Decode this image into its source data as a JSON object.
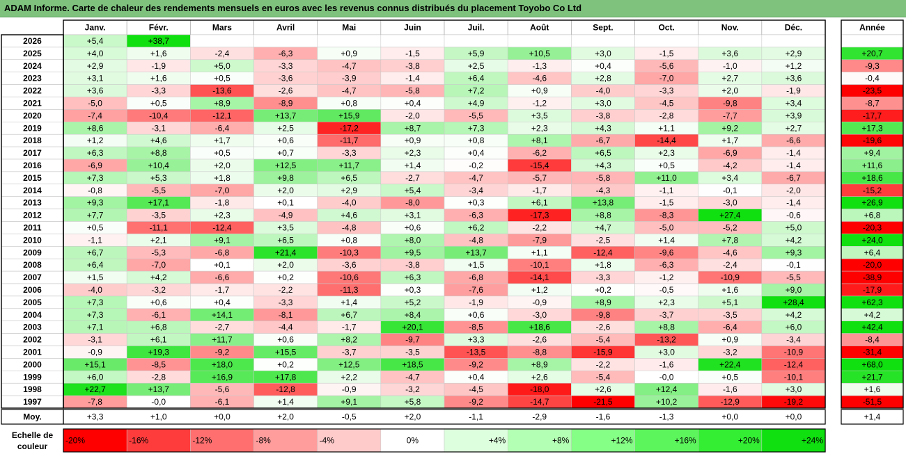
{
  "title": "ADAM Informe. Carte de chaleur des rendements mensuels en euros avec les revenus connus distribués du placement Toyobo Co Ltd",
  "chart_data": {
    "type": "heatmap",
    "columns": [
      "Janv.",
      "Févr.",
      "Mars",
      "Avril",
      "Mai",
      "Juin",
      "Juil.",
      "Août",
      "Sept.",
      "Oct.",
      "Nov.",
      "Déc."
    ],
    "year_header": "Année",
    "rows": [
      {
        "year": "2026",
        "values": [
          "+5,4",
          "+38,7",
          null,
          null,
          null,
          null,
          null,
          null,
          null,
          null,
          null,
          null
        ],
        "annual": null
      },
      {
        "year": "2025",
        "values": [
          "+4,0",
          "+1,6",
          "-2,4",
          "-6,3",
          "+0,9",
          "-1,5",
          "+5,9",
          "+10,5",
          "+3,0",
          "-1,5",
          "+3,6",
          "+2,9"
        ],
        "annual": "+20,7"
      },
      {
        "year": "2024",
        "values": [
          "+2,9",
          "-1,9",
          "+5,0",
          "-3,3",
          "-4,7",
          "-3,8",
          "+2,5",
          "-1,3",
          "+0,4",
          "-5,6",
          "-1,0",
          "+1,2"
        ],
        "annual": "-9,3"
      },
      {
        "year": "2023",
        "values": [
          "+3,1",
          "+1,6",
          "+0,5",
          "-3,6",
          "-3,9",
          "-1,4",
          "+6,4",
          "-4,6",
          "+2,8",
          "-7,0",
          "+2,7",
          "+3,6"
        ],
        "annual": "-0,4"
      },
      {
        "year": "2022",
        "values": [
          "+3,6",
          "-3,3",
          "-13,6",
          "-2,6",
          "-4,7",
          "-5,8",
          "+7,2",
          "+0,9",
          "-4,0",
          "-3,3",
          "+2,0",
          "-1,9"
        ],
        "annual": "-23,5"
      },
      {
        "year": "2021",
        "values": [
          "-5,0",
          "+0,5",
          "+8,9",
          "-8,9",
          "+0,8",
          "+0,4",
          "+4,9",
          "-1,2",
          "+3,0",
          "-4,5",
          "-9,8",
          "+3,4"
        ],
        "annual": "-8,7"
      },
      {
        "year": "2020",
        "values": [
          "-7,4",
          "-10,4",
          "-12,1",
          "+13,7",
          "+15,9",
          "-2,0",
          "-5,5",
          "+3,5",
          "-3,8",
          "-2,8",
          "-7,7",
          "+3,9"
        ],
        "annual": "-17,7"
      },
      {
        "year": "2019",
        "values": [
          "+8,6",
          "-3,1",
          "-6,4",
          "+2,5",
          "-17,2",
          "+8,7",
          "+7,3",
          "+2,3",
          "+4,3",
          "+1,1",
          "+9,2",
          "+2,7"
        ],
        "annual": "+17,3"
      },
      {
        "year": "2018",
        "values": [
          "+1,2",
          "+4,6",
          "+1,7",
          "+0,6",
          "-11,7",
          "+0,9",
          "+0,8",
          "+8,1",
          "-6,7",
          "-14,4",
          "+1,7",
          "-6,6"
        ],
        "annual": "-19,6"
      },
      {
        "year": "2017",
        "values": [
          "+6,3",
          "+8,8",
          "+0,5",
          "+0,7",
          "-3,3",
          "+2,3",
          "+0,4",
          "-6,2",
          "+6,5",
          "+2,3",
          "-6,9",
          "-1,4"
        ],
        "annual": "+9,4"
      },
      {
        "year": "2016",
        "values": [
          "-6,9",
          "+10,4",
          "+2,0",
          "+12,5",
          "+11,7",
          "+1,4",
          "-0,2",
          "-15,4",
          "+4,3",
          "+0,5",
          "-4,2",
          "-1,4"
        ],
        "annual": "+11,6"
      },
      {
        "year": "2015",
        "values": [
          "+7,3",
          "+5,3",
          "+1,8",
          "+9,8",
          "+6,5",
          "-2,7",
          "-4,7",
          "-5,7",
          "-5,8",
          "+11,0",
          "+3,4",
          "-6,7"
        ],
        "annual": "+18,6"
      },
      {
        "year": "2014",
        "values": [
          "-0,8",
          "-5,5",
          "-7,0",
          "+2,0",
          "+2,9",
          "+5,4",
          "-3,4",
          "-1,7",
          "-4,3",
          "-1,1",
          "-0,1",
          "-2,0"
        ],
        "annual": "-15,2"
      },
      {
        "year": "2013",
        "values": [
          "+9,3",
          "+17,1",
          "-1,8",
          "+0,1",
          "-4,0",
          "-8,0",
          "+0,3",
          "+6,1",
          "+13,8",
          "-1,5",
          "-3,0",
          "-1,4"
        ],
        "annual": "+26,9"
      },
      {
        "year": "2012",
        "values": [
          "+7,7",
          "-3,5",
          "+2,3",
          "-4,9",
          "+4,6",
          "+3,1",
          "-6,3",
          "-17,3",
          "+8,8",
          "-8,3",
          "+27,4",
          "-0,6"
        ],
        "annual": "+6,8"
      },
      {
        "year": "2011",
        "values": [
          "+0,5",
          "-11,1",
          "-12,4",
          "+3,5",
          "-4,8",
          "+0,6",
          "+6,2",
          "-2,2",
          "+4,7",
          "-5,0",
          "-5,2",
          "+5,0"
        ],
        "annual": "-20,3"
      },
      {
        "year": "2010",
        "values": [
          "-1,1",
          "+2,1",
          "+9,1",
          "+6,5",
          "+0,8",
          "+8,0",
          "-4,8",
          "-7,9",
          "-2,5",
          "+1,4",
          "+7,8",
          "+4,2"
        ],
        "annual": "+24,0"
      },
      {
        "year": "2009",
        "values": [
          "+6,7",
          "-5,3",
          "-6,8",
          "+21,4",
          "-10,3",
          "+9,5",
          "+13,7",
          "+1,1",
          "-12,4",
          "-9,6",
          "-4,6",
          "+9,3"
        ],
        "annual": "+6,4"
      },
      {
        "year": "2008",
        "values": [
          "+6,4",
          "-7,0",
          "+0,1",
          "+2,0",
          "-3,6",
          "-3,8",
          "+1,5",
          "-10,1",
          "+1,8",
          "-6,3",
          "-2,4",
          "-0,1"
        ],
        "annual": "-20,0"
      },
      {
        "year": "2007",
        "values": [
          "+1,5",
          "+4,2",
          "-6,6",
          "+0,2",
          "-10,6",
          "+6,3",
          "-6,8",
          "-14,1",
          "-3,3",
          "-1,2",
          "-10,9",
          "-5,5"
        ],
        "annual": "-38,9"
      },
      {
        "year": "2006",
        "values": [
          "-4,0",
          "-3,2",
          "-1,7",
          "-2,2",
          "-11,3",
          "+0,3",
          "-7,6",
          "+1,2",
          "+0,2",
          "-0,5",
          "+1,6",
          "+9,0"
        ],
        "annual": "-17,9"
      },
      {
        "year": "2005",
        "values": [
          "+7,3",
          "+0,6",
          "+0,4",
          "-3,3",
          "+1,4",
          "+5,2",
          "-1,9",
          "-0,9",
          "+8,9",
          "+2,3",
          "+5,1",
          "+28,4"
        ],
        "annual": "+62,3"
      },
      {
        "year": "2004",
        "values": [
          "+7,3",
          "-6,1",
          "+14,1",
          "-8,1",
          "+6,7",
          "+8,4",
          "+0,6",
          "-3,0",
          "-9,8",
          "-3,7",
          "-3,5",
          "+4,2"
        ],
        "annual": "+4,2"
      },
      {
        "year": "2003",
        "values": [
          "+7,1",
          "+6,8",
          "-2,7",
          "-4,4",
          "-1,7",
          "+20,1",
          "-8,5",
          "+18,6",
          "-2,6",
          "+8,8",
          "-6,4",
          "+6,0"
        ],
        "annual": "+42,4"
      },
      {
        "year": "2002",
        "values": [
          "-3,1",
          "+6,1",
          "+11,7",
          "+0,6",
          "+8,2",
          "-9,7",
          "+3,3",
          "-2,6",
          "-5,4",
          "-13,2",
          "+0,9",
          "-3,4"
        ],
        "annual": "-8,4"
      },
      {
        "year": "2001",
        "values": [
          "-0,9",
          "+19,3",
          "-9,2",
          "+15,5",
          "-3,7",
          "-3,5",
          "-13,5",
          "-8,8",
          "-15,9",
          "+3,0",
          "-3,2",
          "-10,9"
        ],
        "annual": "-31,4"
      },
      {
        "year": "2000",
        "values": [
          "+15,1",
          "-8,5",
          "+18,0",
          "+0,2",
          "+12,5",
          "+18,5",
          "-9,2",
          "+8,9",
          "-2,2",
          "-1,6",
          "+22,4",
          "-12,4"
        ],
        "annual": "+68,0"
      },
      {
        "year": "1999",
        "values": [
          "+6,0",
          "-2,8",
          "+16,9",
          "+17,8",
          "+2,2",
          "-4,7",
          "+0,4",
          "+2,6",
          "-5,4",
          "-0,0",
          "+0,5",
          "-10,1"
        ],
        "annual": "+21,7"
      },
      {
        "year": "1998",
        "values": [
          "+22,7",
          "+13,7",
          "-5,6",
          "-12,8",
          "-0,9",
          "-3,2",
          "-4,5",
          "-18,0",
          "+2,6",
          "+12,4",
          "-1,6",
          "+3,0"
        ],
        "annual": "+1,6"
      },
      {
        "year": "1997",
        "values": [
          "-7,8",
          "-0,0",
          "-6,1",
          "+1,4",
          "+9,1",
          "+5,8",
          "-9,2",
          "-14,7",
          "-21,5",
          "+10,2",
          "-12,9",
          "-19,2"
        ],
        "annual": "-51,5"
      }
    ],
    "average": {
      "label": "Moy.",
      "values": [
        "+3,3",
        "+1,0",
        "+0,0",
        "+2,0",
        "-0,5",
        "+2,0",
        "-1,1",
        "-2,9",
        "-1,6",
        "-1,3",
        "+0,0",
        "+0,0"
      ],
      "annual": "+1,4"
    },
    "scale": {
      "label_line1": "Echelle de",
      "label_line2": "couleur",
      "steps": [
        {
          "label": "-20%",
          "color": "#ff0000"
        },
        {
          "label": "-16%",
          "color": "#ff3c3c"
        },
        {
          "label": "-12%",
          "color": "#ff6f6f"
        },
        {
          "label": "-8%",
          "color": "#ff9c9c"
        },
        {
          "label": "-4%",
          "color": "#ffcaca"
        },
        {
          "label": "0%",
          "color": "#ffffff"
        },
        {
          "label": "+4%",
          "color": "#ddffdd"
        },
        {
          "label": "+8%",
          "color": "#b3ffb3"
        },
        {
          "label": "+12%",
          "color": "#86ff86"
        },
        {
          "label": "+16%",
          "color": "#5cf55c"
        },
        {
          "label": "+20%",
          "color": "#33ee33"
        },
        {
          "label": "+24%",
          "color": "#10e010"
        }
      ]
    },
    "colors": {
      "negative_max": "#ff0000",
      "positive_max": "#10e010",
      "title_bar": "#7ec27e"
    }
  }
}
